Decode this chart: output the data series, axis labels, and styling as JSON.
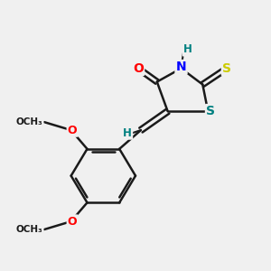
{
  "background_color": "#f0f0f0",
  "bond_color": "#1a1a1a",
  "atoms": {
    "O": "#ff0000",
    "N": "#0000ff",
    "S": "#cccc00",
    "S_thiazolidine": "#008080",
    "C": "#1a1a1a",
    "H": "#008080"
  },
  "figsize": [
    3.0,
    3.0
  ],
  "dpi": 100
}
